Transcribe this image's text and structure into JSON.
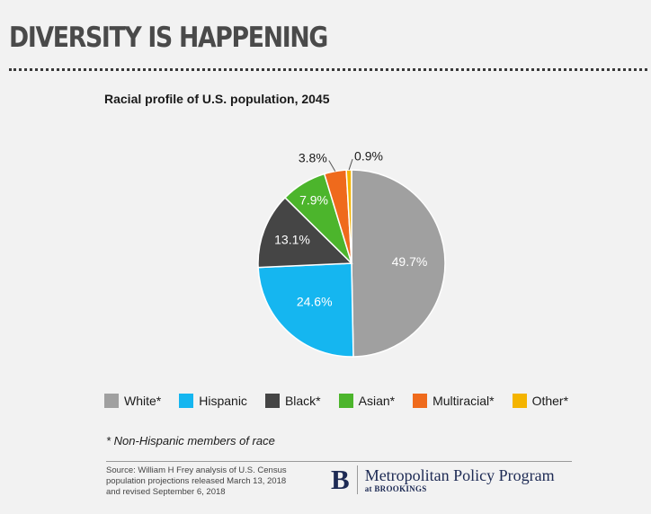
{
  "headline": "DIVERSITY IS HAPPENING",
  "chart_data": {
    "type": "pie",
    "title": "Racial profile of U.S. population, 2045",
    "categories": [
      "White*",
      "Hispanic",
      "Black*",
      "Asian*",
      "Multiracial*",
      "Other*"
    ],
    "values": [
      49.7,
      24.6,
      13.1,
      7.9,
      3.8,
      0.9
    ],
    "value_labels": [
      "49.7%",
      "24.6%",
      "13.1%",
      "7.9%",
      "3.8%",
      "0.9%"
    ],
    "colors": [
      "#a0a0a0",
      "#15b6f0",
      "#454545",
      "#4cb52c",
      "#ef6a1c",
      "#f4b400"
    ],
    "start_angle_deg": 0,
    "direction": "clockwise",
    "legend_position": "bottom"
  },
  "footnote": "* Non-Hispanic members of race",
  "source": {
    "line1": "Source: William H Frey analysis of U.S. Census",
    "line2": "population projections released March 13, 2018",
    "line3": "and revised September 6, 2018"
  },
  "logo": {
    "mark": "B",
    "name": "Metropolitan Policy Program",
    "at": "at",
    "org": "BROOKINGS"
  }
}
